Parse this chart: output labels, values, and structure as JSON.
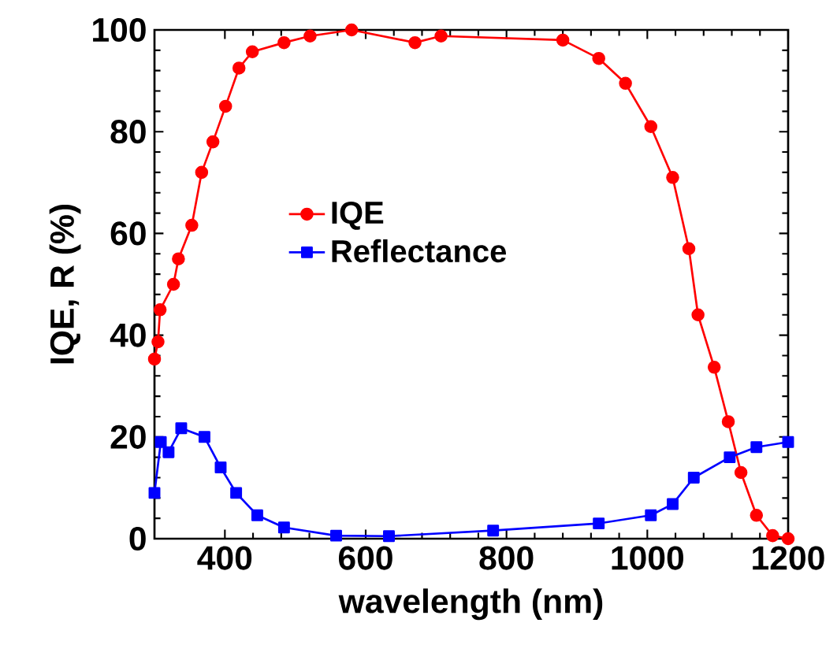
{
  "chart_data": {
    "type": "line",
    "xlabel": "wavelength (nm)",
    "ylabel": "IQE, R (%)",
    "xlim": [
      300,
      1200
    ],
    "ylim": [
      0,
      100
    ],
    "xticks": [
      400,
      600,
      800,
      1000,
      1200
    ],
    "yticks": [
      0,
      20,
      40,
      60,
      80,
      100
    ],
    "grid": false,
    "legend": "center",
    "line_style": "solid",
    "series": [
      {
        "name": "IQE",
        "color": "#ff0000",
        "marker": "circle",
        "x": [
          300,
          305,
          308,
          327,
          334,
          353,
          367,
          383,
          401,
          420,
          439,
          484,
          521,
          580,
          670,
          707,
          880,
          931,
          969,
          1005,
          1036,
          1059,
          1072,
          1095,
          1115,
          1133,
          1155,
          1178,
          1200
        ],
        "values": [
          35.3,
          38.7,
          45,
          50,
          55,
          61.6,
          72,
          78,
          85,
          92.5,
          95.7,
          97.5,
          98.8,
          100,
          97.5,
          98.8,
          98,
          94.4,
          89.5,
          81,
          71,
          57,
          44,
          33.7,
          23,
          13,
          4.6,
          0.6,
          0
        ]
      },
      {
        "name": "Reflectance",
        "color": "#0000ff",
        "marker": "square",
        "x": [
          300,
          309,
          320,
          338,
          371,
          394,
          416,
          446,
          484,
          558,
          633,
          781,
          931,
          1005,
          1036,
          1066,
          1117,
          1155,
          1200
        ],
        "values": [
          9,
          19,
          17,
          21.7,
          20,
          14,
          9,
          4.6,
          2.2,
          0.6,
          0.5,
          1.6,
          3,
          4.6,
          6.8,
          12,
          16,
          18,
          19
        ]
      }
    ]
  }
}
